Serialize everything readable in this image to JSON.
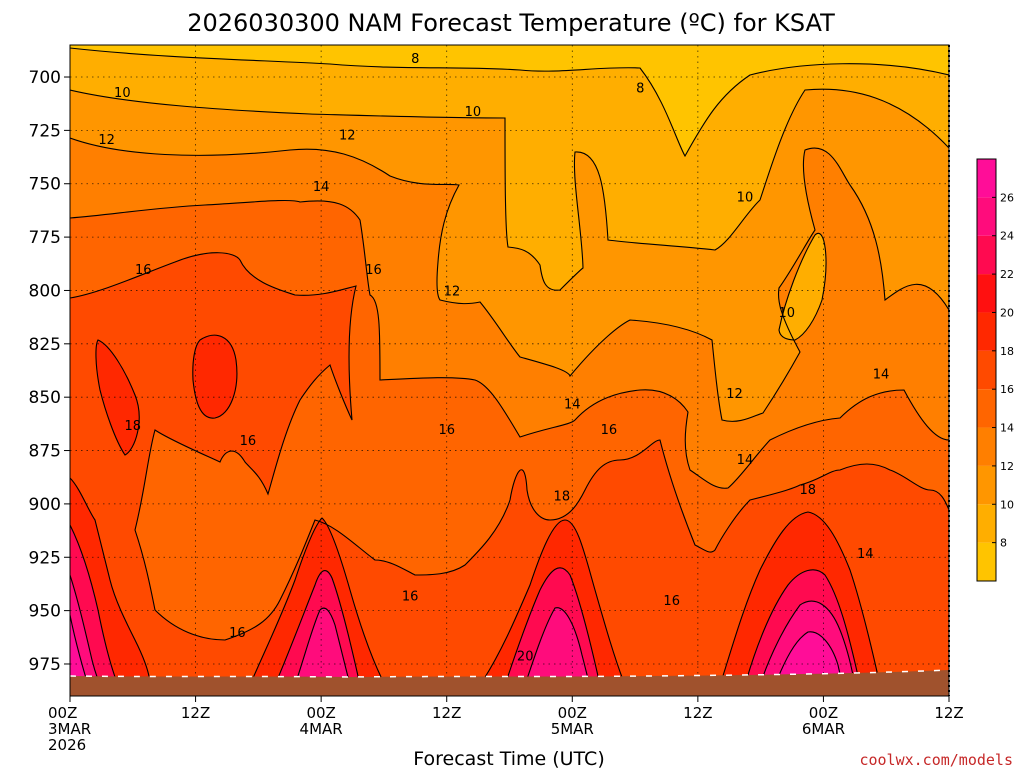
{
  "chart_data": {
    "type": "filled-contour",
    "title": "2026030300 NAM Forecast Temperature (ºC) for KSAT",
    "xlabel": "Forecast Time (UTC)",
    "ylabel": "",
    "y_ticks": [
      "700",
      "725",
      "750",
      "775",
      "800",
      "825",
      "850",
      "875",
      "900",
      "925",
      "950",
      "975"
    ],
    "y_values": [
      700,
      725,
      750,
      775,
      800,
      825,
      850,
      875,
      900,
      925,
      950,
      975
    ],
    "ylim": [
      685,
      990
    ],
    "xlim_hours": [
      0,
      84
    ],
    "x_ticks": [
      {
        "hour": 0,
        "lines": [
          "00Z",
          "3MAR",
          "2026"
        ]
      },
      {
        "hour": 12,
        "lines": [
          "12Z"
        ]
      },
      {
        "hour": 24,
        "lines": [
          "00Z",
          "4MAR"
        ]
      },
      {
        "hour": 36,
        "lines": [
          "12Z"
        ]
      },
      {
        "hour": 48,
        "lines": [
          "00Z",
          "5MAR"
        ]
      },
      {
        "hour": 60,
        "lines": [
          "12Z"
        ]
      },
      {
        "hour": 72,
        "lines": [
          "00Z",
          "6MAR"
        ]
      },
      {
        "hour": 84,
        "lines": [
          "12Z"
        ]
      }
    ],
    "colorbar": {
      "levels": [
        6,
        8,
        10,
        12,
        14,
        16,
        18,
        20,
        22,
        24,
        26,
        28
      ],
      "colors": [
        "#ffc400",
        "#ffae00",
        "#ff9600",
        "#ff7f00",
        "#ff6500",
        "#ff4a00",
        "#ff2800",
        "#ff1010",
        "#ff0a50",
        "#ff0c7c",
        "#ff0d98"
      ],
      "labels": [
        "8",
        "10",
        "12",
        "14",
        "16",
        "18",
        "20",
        "22",
        "24",
        "26"
      ]
    },
    "contour_labels": [
      {
        "text": "8",
        "hour": 33.0,
        "p": 691
      },
      {
        "text": "8",
        "hour": 54.5,
        "p": 705
      },
      {
        "text": "10",
        "hour": 5.0,
        "p": 707
      },
      {
        "text": "10",
        "hour": 38.5,
        "p": 716
      },
      {
        "text": "10",
        "hour": 64.5,
        "p": 756
      },
      {
        "text": "10",
        "hour": 68.5,
        "p": 810
      },
      {
        "text": "12",
        "hour": 3.5,
        "p": 729
      },
      {
        "text": "12",
        "hour": 26.5,
        "p": 727
      },
      {
        "text": "12",
        "hour": 36.5,
        "p": 800
      },
      {
        "text": "12",
        "hour": 63.5,
        "p": 848
      },
      {
        "text": "14",
        "hour": 24.0,
        "p": 751
      },
      {
        "text": "14",
        "hour": 48.0,
        "p": 853
      },
      {
        "text": "14",
        "hour": 64.5,
        "p": 879
      },
      {
        "text": "14",
        "hour": 76.0,
        "p": 923
      },
      {
        "text": "14",
        "hour": 77.5,
        "p": 839
      },
      {
        "text": "16",
        "hour": 7.0,
        "p": 790
      },
      {
        "text": "16",
        "hour": 29.0,
        "p": 790
      },
      {
        "text": "16",
        "hour": 17.0,
        "p": 870
      },
      {
        "text": "16",
        "hour": 36.0,
        "p": 865
      },
      {
        "text": "16",
        "hour": 51.5,
        "p": 865
      },
      {
        "text": "16",
        "hour": 32.5,
        "p": 943
      },
      {
        "text": "16",
        "hour": 16.0,
        "p": 960
      },
      {
        "text": "16",
        "hour": 57.5,
        "p": 945
      },
      {
        "text": "18",
        "hour": 6.0,
        "p": 863
      },
      {
        "text": "18",
        "hour": 47.0,
        "p": 896
      },
      {
        "text": "18",
        "hour": 70.5,
        "p": 893
      },
      {
        "text": "20",
        "hour": 43.5,
        "p": 971
      }
    ],
    "warm_cores": [
      {
        "hour": 0.5,
        "pressure_levels": [
          880,
          900,
          930,
          950,
          965,
          975
        ],
        "temps": [
          18,
          20,
          22,
          24,
          26,
          28
        ]
      },
      {
        "hour": 24.0,
        "pressure_levels": [
          896,
          915,
          945,
          960,
          975
        ],
        "temps": [
          18,
          20,
          22,
          24,
          26
        ]
      },
      {
        "hour": 48.0,
        "pressure_levels": [
          895,
          915,
          935,
          955,
          970
        ],
        "temps": [
          18,
          20,
          22,
          24,
          26
        ]
      },
      {
        "hour": 72.0,
        "pressure_levels": [
          890,
          915,
          935,
          950,
          965,
          975
        ],
        "temps": [
          18,
          20,
          22,
          24,
          26,
          28
        ]
      }
    ],
    "grid": true
  },
  "watermark": "coolwx.com/models"
}
